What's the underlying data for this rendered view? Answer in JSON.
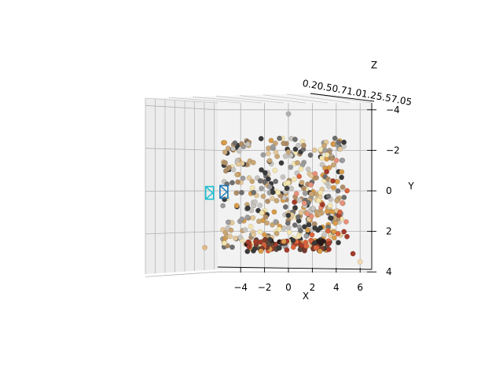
{
  "chart_data": {
    "type": "scatter",
    "projection": "3d",
    "title": "",
    "xlabel": "X",
    "ylabel": "Y",
    "zlabel": "Z",
    "xlim": [
      -6,
      7
    ],
    "ylim": [
      4,
      -4
    ],
    "zlim": [
      0.2,
      2.1
    ],
    "x_ticks": [
      "−4",
      "−2",
      "0",
      "2",
      "4",
      "6"
    ],
    "y_ticks": [
      "−4",
      "−2",
      "0",
      "2",
      "4"
    ],
    "z_ticks": [
      "0.25",
      "0.50",
      "0.75",
      "1.00",
      "1.25",
      "1.50",
      "1.75",
      "2.00"
    ],
    "z_ticks_text": "0.20.50.71.01.25.57.05",
    "grid": true,
    "legend": "none",
    "camera_markers": [
      {
        "x": -6.6,
        "y": 0.1,
        "color": "#17becf"
      },
      {
        "x": -5.4,
        "y": 0.05,
        "color": "#1f77b4"
      }
    ],
    "colors": {
      "pane": "#f2f2f2",
      "grid": "#b0b0b0",
      "palette": [
        "#3a3a3a",
        "#6e6e6e",
        "#9c9c9c",
        "#c8c4bf",
        "#b08d66",
        "#c8a676",
        "#d89b4a",
        "#e2c79a",
        "#f3e6b0",
        "#7a3b2e",
        "#a33a2a",
        "#d8643c",
        "#e8907a",
        "#2b1a17",
        "#5a4a3e"
      ]
    }
  }
}
